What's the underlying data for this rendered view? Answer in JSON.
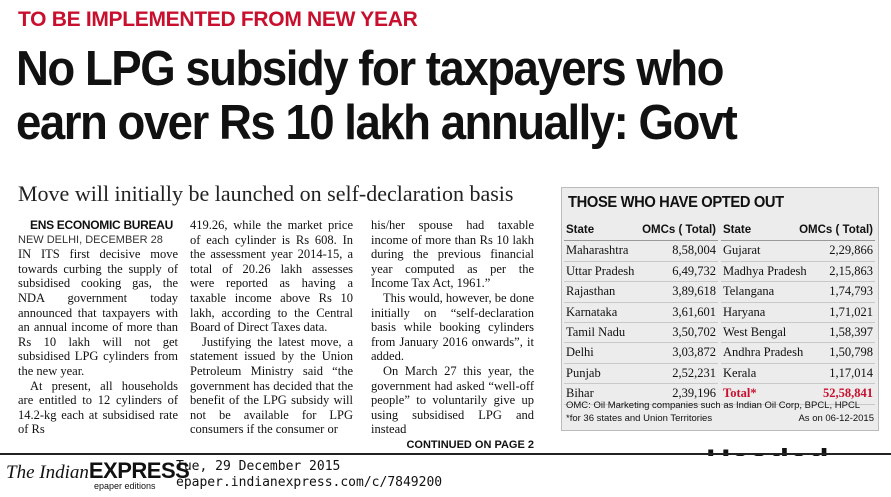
{
  "article": {
    "kicker": "TO BE IMPLEMENTED FROM NEW YEAR",
    "headline_line1": "No LPG subsidy for taxpayers who",
    "headline_line2": "earn over Rs 10 lakh annually: Govt",
    "deck": "Move will initially be launched on self-declaration basis",
    "byline": "ENS ECONOMIC BUREAU",
    "dateline": "NEW DELHI, DECEMBER 28",
    "col1": [
      "IN ITS first decisive move towards curbing the supply of subsidised cooking gas, the NDA government today announced that taxpayers with an annual income of more than Rs 10 lakh will not get subsidised LPG cylinders from the new year.",
      "At present, all households are entitled to 12 cylinders of 14.2-kg each at subsidised rate of Rs"
    ],
    "col2": [
      "419.26, while the market price of each cylinder is Rs 608. In the assessment year 2014-15, a total of 20.26 lakh assesses were reported as having a taxable income above Rs 10 lakh, according to the Central Board of Direct Taxes data.",
      "Justifying the latest move, a statement issued by the Union Petroleum Ministry said “the government has decided that the benefit of the LPG subsidy will not be available for LPG consumers if the consumer or"
    ],
    "col3": [
      "his/her spouse had taxable income of more than Rs 10 lakh during the previous financial year computed as per the Income Tax Act, 1961.”",
      "This would, however, be done initially on “self-declaration basis while booking cylinders from January 2016 onwards”, it added.",
      "On March 27 this year, the government had asked “well-off people” to voluntarily give up using subsidised LPG and instead"
    ],
    "continued": "CONTINUED ON PAGE 2"
  },
  "table": {
    "title": "THOSE WHO HAVE OPTED OUT",
    "header_state": "State",
    "header_omc": "OMCs ( Total)",
    "left_rows": [
      {
        "state": "Maharashtra",
        "value": "8,58,004"
      },
      {
        "state": "Uttar Pradesh",
        "value": "6,49,732"
      },
      {
        "state": "Rajasthan",
        "value": "3,89,618"
      },
      {
        "state": "Karnataka",
        "value": "3,61,601"
      },
      {
        "state": "Tamil Nadu",
        "value": "3,50,702"
      },
      {
        "state": "Delhi",
        "value": "3,03,872"
      },
      {
        "state": "Punjab",
        "value": "2,52,231"
      },
      {
        "state": "Bihar",
        "value": "2,39,196"
      }
    ],
    "right_rows": [
      {
        "state": "Gujarat",
        "value": "2,29,866"
      },
      {
        "state": "Madhya Pradesh",
        "value": "2,15,863"
      },
      {
        "state": "Telangana",
        "value": "1,74,793"
      },
      {
        "state": "Haryana",
        "value": "1,71,021"
      },
      {
        "state": "West Bengal",
        "value": "1,58,397"
      },
      {
        "state": "Andhra Pradesh",
        "value": "1,50,798"
      },
      {
        "state": "Kerala",
        "value": "1,17,014"
      },
      {
        "state": "Total*",
        "value": "52,58,841"
      }
    ],
    "footnote1": "OMC: Oil Marketing companies such as Indian Oil Corp, BPCL, HPCL",
    "footnote2": "*for 36 states and Union Territories",
    "asof": "As on 06-12-2015",
    "total_color": "#c8102e"
  },
  "footer": {
    "masthead_the": "The Indian",
    "masthead_express": "EXPRESS",
    "masthead_sub": "epaper editions",
    "date": "Tue, 29 December 2015",
    "url": "epaper.indianexpress.com/c/7849200"
  },
  "colors": {
    "kicker": "#c8102e",
    "text": "#111111",
    "table_bg": "#ececec"
  }
}
